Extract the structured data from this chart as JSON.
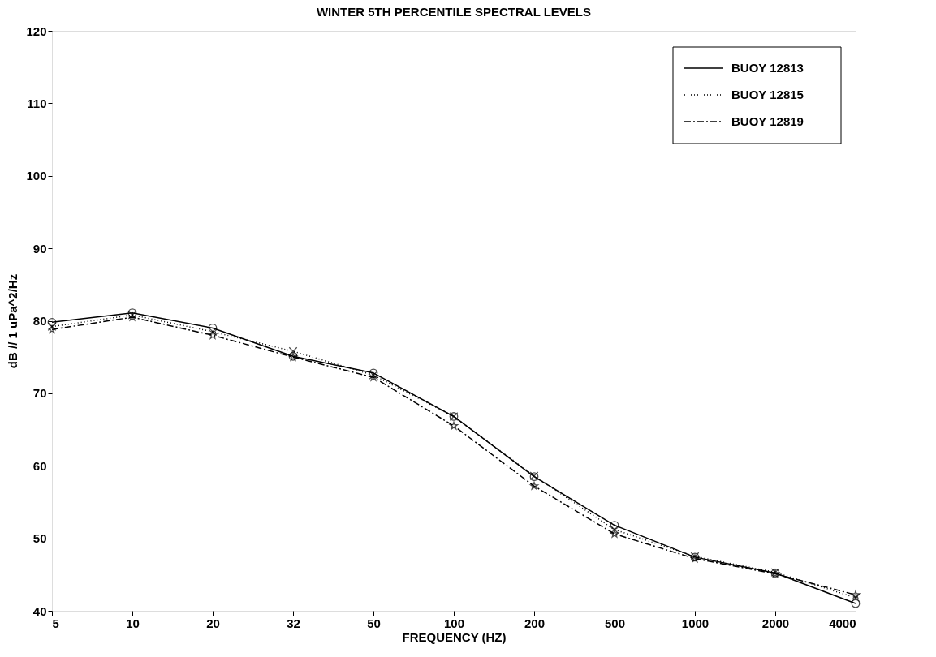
{
  "chart_data": {
    "type": "line",
    "title": "WINTER 5TH PERCENTILE SPECTRAL LEVELS",
    "xlabel": "FREQUENCY (HZ)",
    "ylabel": "dB // 1 uPa^2/Hz",
    "categories": [
      "5",
      "10",
      "20",
      "32",
      "50",
      "100",
      "200",
      "500",
      "1000",
      "2000",
      "4000"
    ],
    "ylim": [
      40,
      120
    ],
    "yticks": [
      40,
      50,
      60,
      70,
      80,
      90,
      100,
      110,
      120
    ],
    "grid": false,
    "legend": "top right",
    "series": [
      {
        "name": "BUOY 12813",
        "color": "#000000",
        "line_style": "solid",
        "marker": "circle",
        "values": [
          79.8,
          81.1,
          79.0,
          75.1,
          72.8,
          66.8,
          58.5,
          51.8,
          47.4,
          45.2,
          41.0
        ]
      },
      {
        "name": "BUOY 12815",
        "color": "#000000",
        "line_style": "dotted",
        "marker": "cross",
        "values": [
          79.2,
          80.8,
          78.5,
          75.8,
          72.5,
          66.8,
          58.6,
          51.2,
          47.5,
          45.3,
          41.8
        ]
      },
      {
        "name": "BUOY 12819",
        "color": "#000000",
        "line_style": "dashed",
        "marker": "star",
        "values": [
          78.8,
          80.5,
          78.0,
          75.0,
          72.2,
          65.5,
          57.2,
          50.6,
          47.2,
          45.1,
          42.2
        ]
      }
    ]
  }
}
